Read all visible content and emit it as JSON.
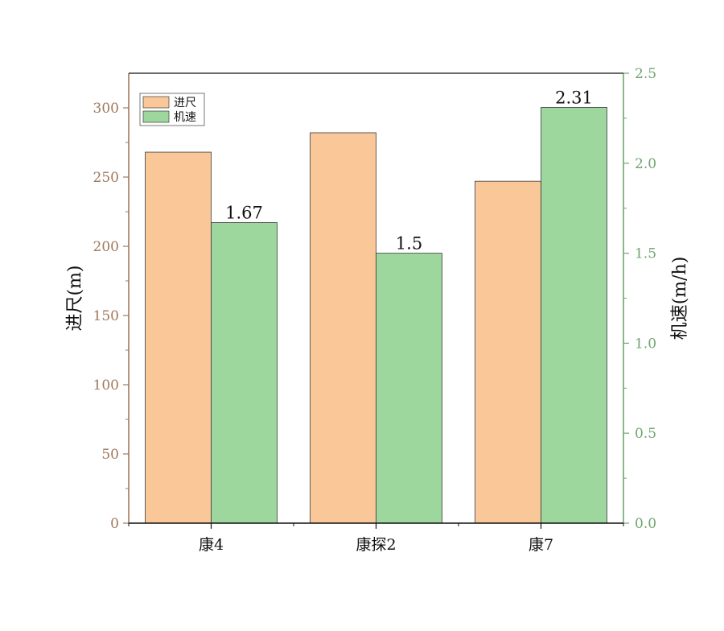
{
  "chart_data": {
    "type": "bar",
    "categories": [
      "康4",
      "康探2",
      "康7"
    ],
    "series": [
      {
        "name": "进尺",
        "axis": "left",
        "values": [
          268,
          282,
          247
        ],
        "color": "#FAC898"
      },
      {
        "name": "机速",
        "axis": "right",
        "values": [
          1.67,
          1.5,
          2.31
        ],
        "color": "#9DD79D",
        "data_labels": [
          "1.67",
          "1.5",
          "2.31"
        ]
      }
    ],
    "ylabel_left": "进尺(m)",
    "ylabel_right": "机速(m/h)",
    "ylim_left": [
      0,
      325
    ],
    "ylim_right": [
      0,
      2.5
    ],
    "yticks_left": [
      0,
      50,
      100,
      150,
      200,
      250,
      300
    ],
    "yticks_right": [
      0.0,
      0.5,
      1.0,
      1.5,
      2.0,
      2.5
    ],
    "ytick_labels_right": [
      "0.0",
      "0.5",
      "1.0",
      "1.5",
      "2.0",
      "2.5"
    ],
    "legend_position": "top-left",
    "grid": false,
    "left_axis_color": "#A0785A",
    "right_axis_color": "#6FA56F"
  }
}
